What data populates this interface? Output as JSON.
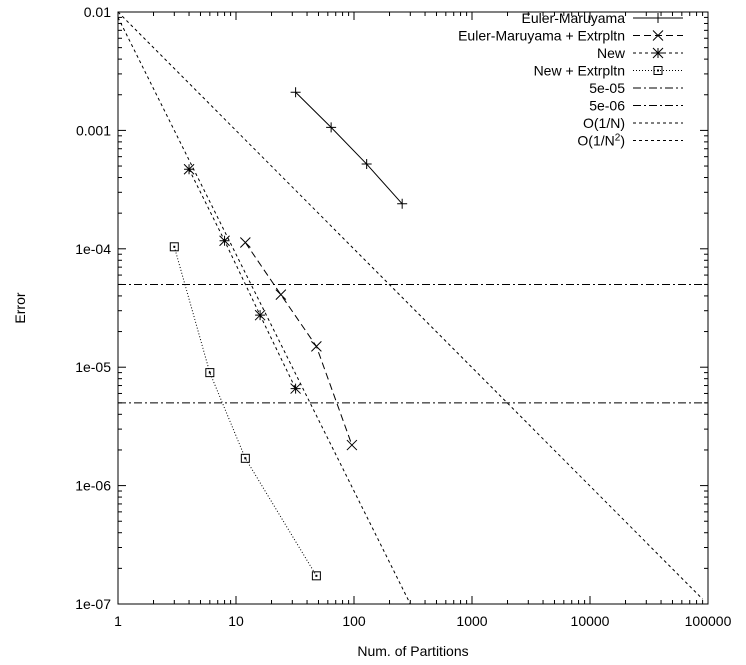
{
  "chart_data": {
    "type": "line",
    "xlabel": "Num. of Partitions",
    "ylabel": "Error",
    "xscale": "log",
    "yscale": "log",
    "xlim": [
      1,
      100000
    ],
    "ylim": [
      1e-07,
      0.01
    ],
    "x_ticks": [
      {
        "value": 1,
        "label": "1"
      },
      {
        "value": 10,
        "label": "10"
      },
      {
        "value": 100,
        "label": "100"
      },
      {
        "value": 1000,
        "label": "1000"
      },
      {
        "value": 10000,
        "label": "10000"
      },
      {
        "value": 100000,
        "label": "100000"
      }
    ],
    "y_ticks": [
      {
        "value": 1e-07,
        "label": "1e-07"
      },
      {
        "value": 1e-06,
        "label": "1e-06"
      },
      {
        "value": 1e-05,
        "label": "1e-05"
      },
      {
        "value": 0.0001,
        "label": "1e-04"
      },
      {
        "value": 0.001,
        "label": "0.001"
      },
      {
        "value": 0.01,
        "label": "0.01"
      }
    ],
    "legend_position": "top-right",
    "grid": false,
    "series": [
      {
        "name": "Euler-Maruyama",
        "line": "solid",
        "marker": "plus",
        "points": [
          [
            32,
            0.0021
          ],
          [
            64,
            0.00106
          ],
          [
            128,
            0.00052
          ],
          [
            256,
            0.00024
          ]
        ]
      },
      {
        "name": "Euler-Maruyama + Extrpltn",
        "line": "dashed",
        "marker": "x",
        "points": [
          [
            12,
            0.000113
          ],
          [
            24,
            4.1e-05
          ],
          [
            48,
            1.5e-05
          ],
          [
            96,
            2.2e-06
          ]
        ]
      },
      {
        "name": "New",
        "line": "short-dash",
        "marker": "asterisk",
        "points": [
          [
            4,
            0.00047
          ],
          [
            8,
            0.000117
          ],
          [
            16,
            2.75e-05
          ],
          [
            32,
            6.6e-06
          ]
        ]
      },
      {
        "name": "New + Extrpltn",
        "line": "dotted",
        "marker": "square",
        "points": [
          [
            3,
            0.000104
          ],
          [
            6,
            9e-06
          ],
          [
            12,
            1.7e-06
          ],
          [
            48,
            1.73e-07
          ]
        ]
      },
      {
        "name": "5e-05",
        "line": "dash-dot",
        "marker": "none",
        "points": [
          [
            1,
            5e-05
          ],
          [
            100000,
            5e-05
          ]
        ]
      },
      {
        "name": "5e-06",
        "line": "dash-dot",
        "marker": "none",
        "points": [
          [
            1,
            5e-06
          ],
          [
            100000,
            5e-06
          ]
        ]
      },
      {
        "name": "O(1/N)",
        "line": "short-dash",
        "marker": "none",
        "points": [
          [
            1,
            0.01
          ],
          [
            90000,
            1.1e-07
          ]
        ]
      },
      {
        "name": "O(1/N^2)",
        "name_base": "O(1/N",
        "name_sup": "2",
        "name_tail": ")",
        "line": "short-dash",
        "marker": "none",
        "points": [
          [
            1,
            0.009
          ],
          [
            300,
            1e-07
          ]
        ]
      }
    ]
  }
}
